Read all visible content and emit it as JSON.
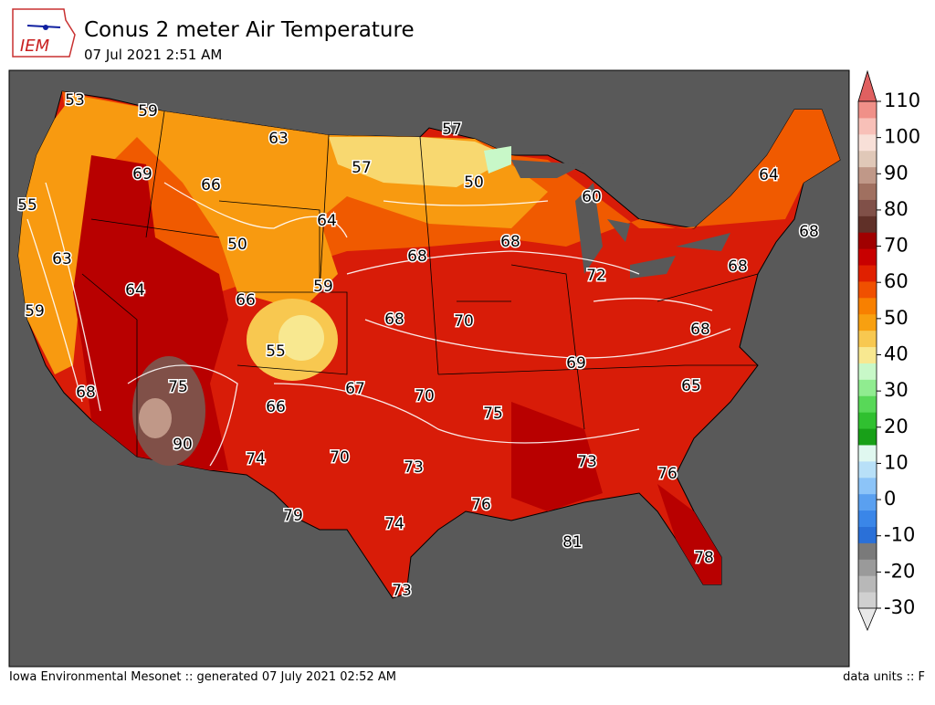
{
  "header": {
    "logo_text": "IEM",
    "title": "Conus 2 meter Air Temperature",
    "subtitle": "07 Jul 2021 2:51 AM"
  },
  "map": {
    "contour_labels": [
      53,
      59,
      63,
      57,
      57,
      69,
      66,
      50,
      60,
      64,
      55,
      64,
      50,
      68,
      68,
      63,
      68,
      72,
      68,
      64,
      66,
      59,
      59,
      68,
      70,
      68,
      55,
      69,
      75,
      67,
      70,
      65,
      68,
      66,
      75,
      90,
      74,
      70,
      73,
      73,
      76,
      76,
      79,
      74,
      81,
      78,
      73
    ]
  },
  "colorbar": {
    "lim": [
      -30,
      110
    ],
    "ticks": [
      -30,
      -20,
      -10,
      0,
      10,
      20,
      30,
      40,
      50,
      60,
      70,
      80,
      90,
      100,
      110
    ],
    "colors": [
      "#e8e8e8",
      "#d0d0d0",
      "#b8b8b8",
      "#9a9a9a",
      "#7a7a7a",
      "#2a70d8",
      "#3a86e8",
      "#5aa0f0",
      "#8cc4f8",
      "#b8e0f8",
      "#e0f8f0",
      "#18a018",
      "#30c030",
      "#58d858",
      "#90ec90",
      "#c8f8c8",
      "#f8e890",
      "#f8c850",
      "#f8a010",
      "#f88000",
      "#f05000",
      "#e02000",
      "#c80000",
      "#a00000",
      "#603028",
      "#805048",
      "#a07060",
      "#c09888",
      "#e0c8b8",
      "#f8e0d8",
      "#f8c0b8",
      "#f09088",
      "#e06060"
    ]
  },
  "footer": {
    "left": "Iowa Environmental Mesonet :: generated 07 July 2021 02:52 AM",
    "right": "data units :: F"
  }
}
